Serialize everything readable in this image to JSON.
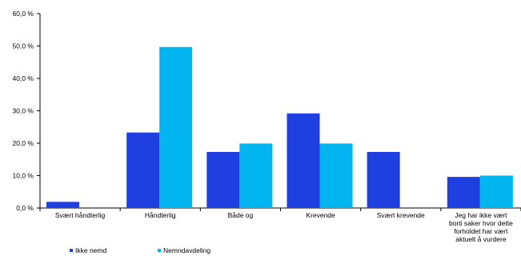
{
  "chart_data": {
    "type": "bar",
    "title": "",
    "xlabel": "",
    "ylabel": "",
    "ylim": [
      0,
      60
    ],
    "yticks": [
      0,
      10,
      20,
      30,
      40,
      50,
      60
    ],
    "ytick_labels": [
      "0,0 %",
      "10,0 %",
      "20,0 %",
      "30,0 %",
      "40,0 %",
      "50,0 %",
      "60,0 %"
    ],
    "grid": false,
    "legend_position": "bottom-left",
    "categories": [
      [
        "Svært håndterlig"
      ],
      [
        "Håndterlig"
      ],
      [
        "Både og"
      ],
      [
        "Krevende"
      ],
      [
        "Svært krevende"
      ],
      [
        "Jeg har ikke vært",
        "borti saker hvor dette",
        "forholdet har vært",
        "aktuelt å vurdere"
      ]
    ],
    "series": [
      {
        "name": "Ikke nemd",
        "color": "#1f3fe0",
        "values": [
          1.9,
          23.3,
          17.3,
          29.2,
          17.3,
          9.6
        ]
      },
      {
        "name": "Nemndavdeling",
        "color": "#00b5f0",
        "values": [
          0,
          49.7,
          19.9,
          19.9,
          0,
          10.0
        ]
      }
    ]
  }
}
